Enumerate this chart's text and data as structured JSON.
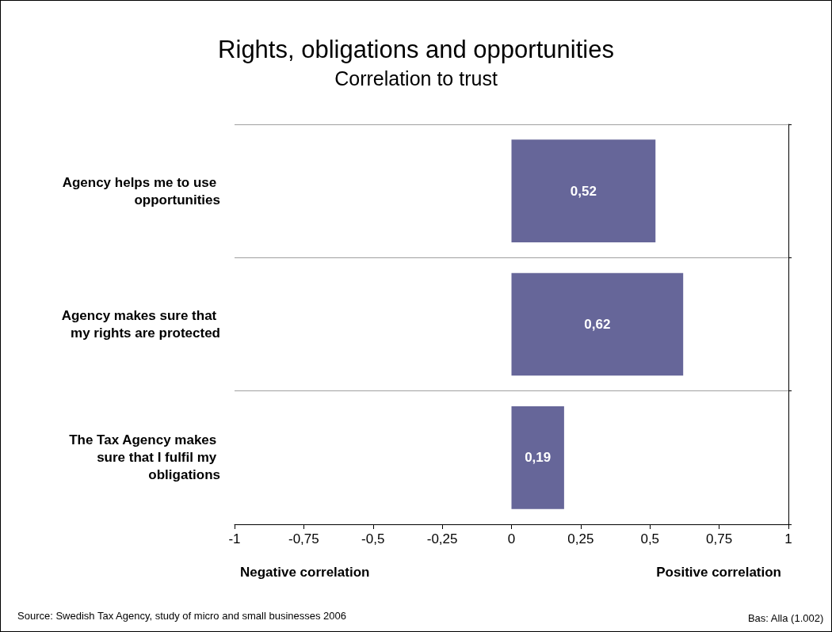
{
  "chart_data": {
    "type": "bar",
    "orientation": "horizontal",
    "title": "Rights, obligations and opportunities",
    "subtitle": "Correlation to trust",
    "categories": [
      "Agency helps me to use opportunities",
      "Agency makes sure that my rights are protected",
      "The Tax Agency makes sure that I fulfil my obligations"
    ],
    "values": [
      0.52,
      0.62,
      0.19
    ],
    "value_labels": [
      "0,52",
      "0,62",
      "0,19"
    ],
    "color": "#666699",
    "xlim": [
      -1,
      1
    ],
    "xticks": [
      {
        "value": -1,
        "label": "-1"
      },
      {
        "value": -0.75,
        "label": "-0,75"
      },
      {
        "value": -0.5,
        "label": "-0,5"
      },
      {
        "value": -0.25,
        "label": "-0,25"
      },
      {
        "value": 0,
        "label": "0"
      },
      {
        "value": 0.25,
        "label": "0,25"
      },
      {
        "value": 0.5,
        "label": "0,5"
      },
      {
        "value": 0.75,
        "label": "0,75"
      },
      {
        "value": 1,
        "label": "1"
      }
    ],
    "grid": "y",
    "annotations": [
      "Negative correlation",
      "Positive correlation",
      "Source: Swedish Tax Agency, study of micro and small businesses 2006",
      "Bas: Alla (1.002)"
    ]
  }
}
